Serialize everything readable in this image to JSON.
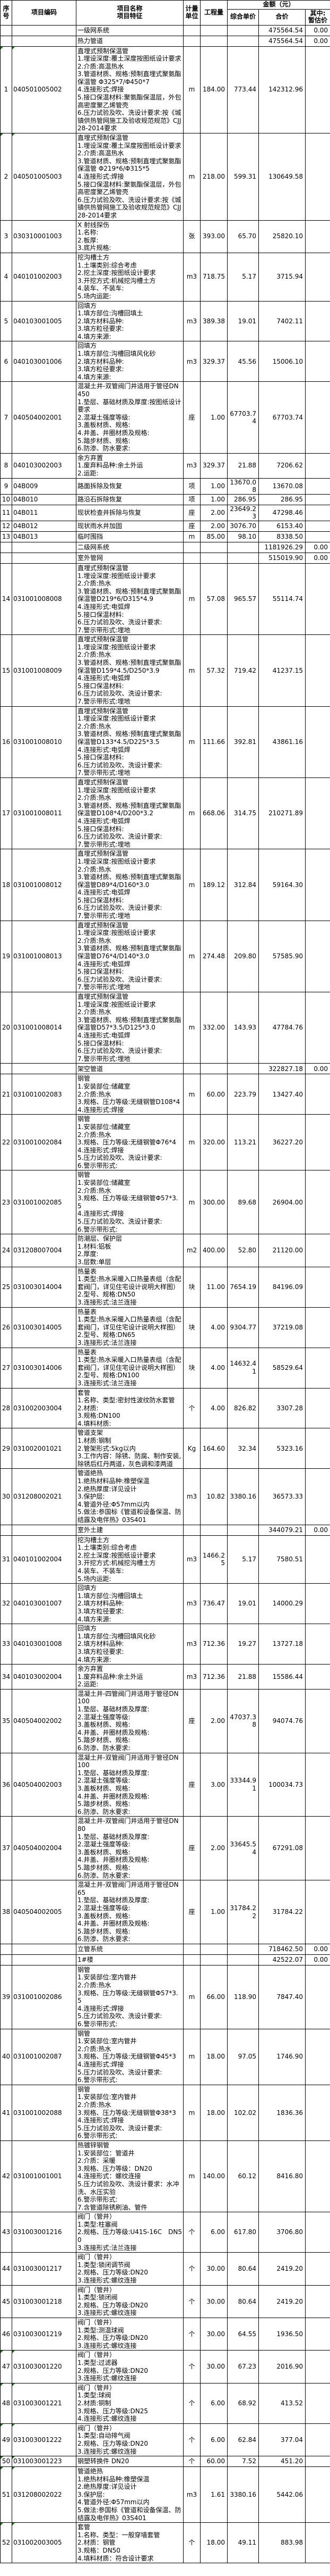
{
  "header": {
    "sn": "序号",
    "code": "项目编码",
    "name1": "项目名称",
    "name2": "项目特征",
    "unit": "计量单位",
    "qty": "工程量",
    "amount_group": "金额（元）",
    "unit_price": "综合单价",
    "total": "合价",
    "estimate1": "其中:",
    "estimate2": "暂估价"
  },
  "rows": [
    {
      "section": true,
      "name": "一级网系统",
      "total": "475564.54",
      "est": "0.00"
    },
    {
      "section": true,
      "name": "热力管道",
      "total": "475564.54",
      "est": "0.00"
    },
    {
      "no": "1",
      "code": "040501005002",
      "green": true,
      "name": "直埋式预制保温管",
      "features": [
        "1.埋设深度:覆土深度按图纸设计要求",
        "2.介质:高温热水",
        "3.管道材质、规格:预制直埋式聚氨酯保温管 Φ325*7/Φ450*7",
        "4.连接形式:焊接",
        "5.接口保温材料:聚氨酯保温层，外包高密度聚乙烯管壳",
        "6.压力试验及吹、洗设计要求:按《城镇供热管网施工及验收规范规范》CJJ28-2014要求"
      ],
      "unit": "m",
      "qty": "184.00",
      "price": "773.44",
      "total": "142312.96",
      "est": ""
    },
    {
      "no": "2",
      "code": "040501005003",
      "green": true,
      "name": "直埋式预制保温管",
      "features": [
        "1.埋设深度:覆土深度按图纸设计要求",
        "2.介质:高温热水",
        "3.管道材质、规格:预制直埋式聚氨酯保温管 Φ219*6/Φ315*5",
        "4.连接形式:焊接",
        "5.接口保温材料:聚氨酯保温层，外包高密度聚乙烯管壳",
        "6.压力试验及吹、洗设计要求:按《城镇供热管网施工及验收规范规范》CJJ28-2014要求"
      ],
      "unit": "m",
      "qty": "218.00",
      "price": "599.31",
      "total": "130649.58",
      "est": ""
    },
    {
      "no": "3",
      "code": "030310001003",
      "name": "X 射线探伤",
      "features": [
        "1.名称:",
        "2.板厚:",
        "3.底片规格:"
      ],
      "unit": "张",
      "qty": "393.00",
      "price": "65.70",
      "total": "25820.10",
      "est": ""
    },
    {
      "no": "4",
      "code": "040101002003",
      "name": "挖沟槽土方",
      "features": [
        "1.土壤类别:综合考虑",
        "2.挖土深度:按图纸设计要求",
        "3.开挖方式:机械挖沟槽土方",
        "4.装车、不装车:",
        "5.场内运距:"
      ],
      "unit": "m3",
      "qty": "718.75",
      "price": "5.17",
      "total": "3715.94",
      "est": ""
    },
    {
      "no": "5",
      "code": "040103001005",
      "name": "回填方",
      "features": [
        "1.填方部位:沟槽回填土",
        "2.填方材料品种:",
        "3.填方粒径要求:",
        "4.填方来源:"
      ],
      "unit": "m3",
      "qty": "389.38",
      "price": "19.01",
      "total": "7402.11",
      "est": ""
    },
    {
      "no": "6",
      "code": "040103001006",
      "name": "回填方",
      "features": [
        "1.填方部位:沟槽回填风化砂",
        "2.填方材料品种:",
        "3.填方粒径要求:",
        "4.填方来源:"
      ],
      "unit": "m3",
      "qty": "329.37",
      "price": "45.56",
      "total": "15006.10",
      "est": ""
    },
    {
      "no": "7",
      "code": "040504002001",
      "name": "混凝土井-双管阀门井适用于管径DN450",
      "features": [
        "1.垫层、基础材质及厚度:按图纸设计要求",
        "2.混凝土强度等级:",
        "3.盖板材质、规格:",
        "4.井盖、井圈材质及规格:",
        "5.踏步材质、规格:",
        "6.防渗、防水要求:"
      ],
      "unit": "座",
      "qty": "1.00",
      "price": "67703.74",
      "total": "67703.74",
      "est": ""
    },
    {
      "no": "8",
      "code": "040103002003",
      "name": "余方弃置",
      "features": [
        "1.废弃料品种:余土外运",
        "2.运距:"
      ],
      "unit": "m3",
      "qty": "329.37",
      "price": "21.88",
      "total": "7206.62",
      "est": ""
    },
    {
      "no": "9",
      "code": "04B009",
      "single": true,
      "name": "路面拆除及恢复",
      "features": [],
      "unit": "项",
      "qty": "1.00",
      "price": "13670.08",
      "total": "13670.08",
      "est": ""
    },
    {
      "no": "10",
      "code": "04B010",
      "single": true,
      "name": "路沿石拆除恢复",
      "features": [],
      "unit": "项",
      "qty": "1.00",
      "price": "286.95",
      "total": "286.95",
      "est": ""
    },
    {
      "no": "11",
      "code": "04B011",
      "single": true,
      "name": "现状检查井拆除与恢复",
      "features": [],
      "unit": "座",
      "qty": "2.00",
      "price": "23649.23",
      "total": "47298.46",
      "est": ""
    },
    {
      "no": "12",
      "code": "04B012",
      "single": true,
      "name": "现状雨水井加固",
      "features": [],
      "unit": "座",
      "qty": "2.00",
      "price": "3076.70",
      "total": "6153.40",
      "est": ""
    },
    {
      "no": "13",
      "code": "04B013",
      "single": true,
      "name": "临时围挡",
      "features": [],
      "unit": "m",
      "qty": "85.00",
      "price": "98.10",
      "total": "8338.50",
      "est": ""
    },
    {
      "section": true,
      "name": "二级网系统",
      "total": "1181926.29",
      "est": "0.00"
    },
    {
      "section": true,
      "name": "室外管网",
      "total": "515019.90",
      "est": "0.00"
    },
    {
      "no": "14",
      "code": "031001008008",
      "name": "直埋式预制保温管",
      "features": [
        "1.埋设深度:按图纸设计要求",
        "2.介质:热水",
        "3.管道材质、规格:预制直埋式聚氨酯保温管D219*6/D315*4.9",
        "4.连接形式:电弧焊",
        "5.接口保温材料:",
        "6.压力试验及吹、洗设计要求:",
        "7.警示带形式:埋地"
      ],
      "unit": "m",
      "qty": "57.08",
      "price": "965.57",
      "total": "55114.74",
      "est": ""
    },
    {
      "no": "15",
      "code": "031001008009",
      "name": "直埋式预制保温管",
      "features": [
        "1.埋设深度:按图纸设计要求",
        "2.介质:热水",
        "3.管道材质、规格:预制直埋式聚氨酯保温管D159*4.5/D250*3.9",
        "4.连接形式:电弧焊",
        "5.接口保温材料:",
        "6.压力试验及吹、洗设计要求:",
        "7.警示带形式:埋地"
      ],
      "unit": "m",
      "qty": "57.32",
      "price": "719.42",
      "total": "41237.15",
      "est": ""
    },
    {
      "no": "16",
      "code": "031001008010",
      "name": "直埋式预制保温管",
      "features": [
        "1.埋设深度:按图纸设计要求",
        "2.介质:热水",
        "3.管道材质、规格:预制直埋式聚氨酯保温管D133*4.5/D225*3.5",
        "4.连接形式:电弧焊",
        "5.接口保温材料:",
        "6.压力试验及吹、洗设计要求:",
        "7.警示带形式:埋地"
      ],
      "unit": "m",
      "qty": "111.66",
      "price": "392.81",
      "total": "43861.16",
      "est": ""
    },
    {
      "no": "17",
      "code": "031001008011",
      "name": "直埋式预制保温管",
      "features": [
        "1.埋设深度:按图纸设计要求",
        "2.介质:热水",
        "3.管道材质、规格:预制直埋式聚氨酯保温管D108*4/D200*3.2",
        "4.连接形式:电弧焊",
        "5.接口保温材料:",
        "6.压力试验及吹、洗设计要求:",
        "7.警示带形式:埋地"
      ],
      "unit": "m",
      "qty": "668.06",
      "price": "314.75",
      "total": "210271.89",
      "est": ""
    },
    {
      "no": "18",
      "code": "031001008012",
      "name": "直埋式预制保温管",
      "features": [
        "1.埋设深度:按图纸设计要求",
        "2.介质:热水",
        "3.管道材质、规格:预制直埋式聚氨酯保温管D89*4/D160*3.0",
        "4.连接形式:电弧焊",
        "5.接口保温材料:",
        "6.压力试验及吹、洗设计要求:",
        "7.警示带形式:埋地"
      ],
      "unit": "m",
      "qty": "189.12",
      "price": "312.84",
      "total": "59164.30",
      "est": ""
    },
    {
      "no": "19",
      "code": "031001008013",
      "name": "直埋式预制保温管",
      "features": [
        "1.埋设深度:按图纸设计要求",
        "2.介质:热水",
        "3.管道材质、规格:预制直埋式聚氨酯保温管D76*4/D140*3.0",
        "4.连接形式:电弧焊",
        "5.接口保温材料:",
        "6.压力试验及吹、洗设计要求:",
        "7.警示带形式:埋地"
      ],
      "unit": "m",
      "qty": "274.48",
      "price": "209.80",
      "total": "57585.90",
      "est": ""
    },
    {
      "no": "20",
      "code": "031001008014",
      "name": "直埋式预制保温管",
      "features": [
        "1.埋设深度:按图纸设计要求",
        "2.介质:热水",
        "3.管道材质、规格:预制直埋式聚氨酯保温管D57*3.5/D125*3.0",
        "4.连接形式:电弧焊",
        "5.接口保温材料:",
        "6.压力试验及吹、洗设计要求:",
        "7.警示带形式:埋地"
      ],
      "unit": "m",
      "qty": "332.00",
      "price": "143.93",
      "total": "47784.76",
      "est": ""
    },
    {
      "section": true,
      "name": "架空管道",
      "total": "322827.18",
      "est": "0.00"
    },
    {
      "no": "21",
      "code": "031001002083",
      "name": "钢管",
      "features": [
        "1.安装部位:储藏室",
        "2.介质:热水",
        "3.规格、压力等级:无缝钢管D108*4",
        "4.连接形式:焊接"
      ],
      "unit": "m",
      "qty": "60.00",
      "price": "223.79",
      "total": "13427.40",
      "est": ""
    },
    {
      "no": "22",
      "code": "031001002084",
      "name": "钢管",
      "features": [
        "1.安装部位:储藏室",
        "2.介质:热水",
        "3.规格、压力等级:无缝钢管Φ76*4",
        "4.连接形式:焊接",
        "5.压力试验及吹、洗设计要求:",
        "6.警示带形式:"
      ],
      "unit": "m",
      "qty": "320.00",
      "price": "113.21",
      "total": "36227.20",
      "est": ""
    },
    {
      "no": "23",
      "code": "031001002085",
      "name": "钢管",
      "features": [
        "1.安装部位:储藏室",
        "2.介质:热水",
        "3.规格、压力等级:无缝钢管Φ57*3.5",
        "4.连接形式:焊接",
        "5.压力试验及吹、洗设计要求:",
        "6.警示带形式:"
      ],
      "unit": "m",
      "qty": "300.00",
      "price": "89.68",
      "total": "26904.00",
      "est": ""
    },
    {
      "no": "24",
      "code": "031208007004",
      "name": "防潮层、保护层",
      "features": [
        "1.材料:铝板",
        "2.厚度:",
        "3.层数:单层"
      ],
      "unit": "m2",
      "qty": "400.00",
      "price": "52.80",
      "total": "21120.00",
      "est": ""
    },
    {
      "no": "25",
      "code": "031003014004",
      "name": "热量表",
      "features": [
        "1.类型:热水采暖入口热量表组（含配套阀门，详见住宅设计说明大样图）",
        "2.型号、规格:DN50",
        "3.连接形式:法兰连接"
      ],
      "unit": "块",
      "qty": "11.00",
      "price": "7654.19",
      "total": "84196.09",
      "est": ""
    },
    {
      "no": "26",
      "code": "031003014005",
      "name": "热量表",
      "features": [
        "1.类型:热水采暖入口热量表组（含配套阀门，详见住宅设计说明大样图）",
        "2.型号、规格:DN65",
        "3.连接形式:法兰连接"
      ],
      "unit": "块",
      "qty": "4.00",
      "price": "9304.77",
      "total": "37219.08",
      "est": ""
    },
    {
      "no": "27",
      "code": "031003014006",
      "name": "热量表",
      "features": [
        "1.类型:热水采暖入口热量表组（含配套阀门，详见住宅设计说明大样图）",
        "2.型号、规格:DN100",
        "3.连接形式:法兰连接"
      ],
      "unit": "块",
      "qty": "4.00",
      "price": "14632.41",
      "total": "58529.64",
      "est": ""
    },
    {
      "no": "28",
      "code": "031002003004",
      "name": "套管",
      "features": [
        "1.名称、类型:密封性波纹防水套管",
        "2.材质:",
        "3.规格:DN100",
        "4.填料材质:"
      ],
      "unit": "个",
      "qty": "4.00",
      "price": "826.82",
      "total": "3307.28",
      "est": ""
    },
    {
      "no": "29",
      "code": "031002001021",
      "name": "管道支架",
      "features": [
        "1.材质:钢制",
        "2.管架形式:5kg以内",
        "3.工作内容：除锈、防腐、制作安装,除锈后红丹两道，灰色调和漆两道"
      ],
      "unit": "Kg",
      "qty": "164.60",
      "price": "32.34",
      "total": "5323.16",
      "est": ""
    },
    {
      "no": "30",
      "code": "031208002021",
      "name": "管道绝热",
      "features": [
        "1.绝热材料品种:橡塑保温",
        "2.绝热厚度:详见设计",
        "3.保护层:",
        "4.管道外径:Φ57mm以内",
        "5.做法:参国标《管道和设备保温、防结露及电伴热》03S401"
      ],
      "unit": "m3",
      "qty": "10.82",
      "price": "3380.16",
      "total": "36573.33",
      "est": ""
    },
    {
      "section": true,
      "name": "室外土建",
      "total": "344079.21",
      "est": "0.00"
    },
    {
      "no": "31",
      "code": "040101002004",
      "name": "挖沟槽土方",
      "features": [
        "1.土壤类别:综合考虑",
        "2.挖土深度:按图纸设计要求",
        "3.开挖方式:机械挖沟槽土方",
        "4.装车、不装车:",
        "5.场内运距:"
      ],
      "unit": "m3",
      "qty": "1466.25",
      "price": "5.17",
      "total": "7580.51",
      "est": ""
    },
    {
      "no": "32",
      "code": "040103001007",
      "name": "回填方",
      "features": [
        "1.填方部位:沟槽回填土",
        "2.填方材料品种:",
        "3.填方粒径要求:",
        "4.填方来源:"
      ],
      "unit": "m3",
      "qty": "736.47",
      "price": "19.01",
      "total": "14000.29",
      "est": ""
    },
    {
      "no": "33",
      "code": "040103001008",
      "name": "回填方",
      "features": [
        "1.填方部位:沟槽回填风化砂",
        "2.填方材料品种:",
        "3.填方粒径要求:",
        "4.填方来源:"
      ],
      "unit": "m3",
      "qty": "712.36",
      "price": "19.27",
      "total": "13727.18",
      "est": ""
    },
    {
      "no": "34",
      "code": "040103002004",
      "name": "余方弃置",
      "features": [
        "1.废弃料品种:余土外运",
        "2.运距:"
      ],
      "unit": "m3",
      "qty": "712.36",
      "price": "21.88",
      "total": "15586.44",
      "est": ""
    },
    {
      "no": "35",
      "code": "040504002002",
      "name": "混凝土井-四管阀门井适用于管径DN100",
      "features": [
        "1.垫层、基础材质及厚度:",
        "2.混凝土强度等级:",
        "3.盖板材质、规格:",
        "4.井盖、井圈材质及规格:",
        "5.踏步材质、规格:",
        "6.防渗、防水要求:"
      ],
      "unit": "座",
      "qty": "2.00",
      "price": "47037.38",
      "total": "94074.76",
      "est": ""
    },
    {
      "no": "36",
      "code": "040504002003",
      "name": "混凝土井-双管阀门井适用于管径DN100",
      "features": [
        "1.垫层、基础材质及厚度:",
        "2.混凝土强度等级:",
        "3.盖板材质、规格:",
        "4.井盖、井圈材质及规格:",
        "5.踏步材质、规格:",
        "6.防渗、防水要求:"
      ],
      "unit": "座",
      "qty": "3.00",
      "price": "33344.91",
      "total": "100034.73",
      "est": ""
    },
    {
      "no": "37",
      "code": "040504002004",
      "name": "混凝土井-双管阀门井适用于管径DN80",
      "features": [
        "1.垫层、基础材质及厚度:",
        "2.混凝土强度等级:",
        "3.盖板材质、规格:",
        "4.井盖、井圈材质及规格:",
        "5.踏步材质、规格:",
        "6.防渗、防水要求:"
      ],
      "unit": "座",
      "qty": "2.00",
      "price": "33645.54",
      "total": "67291.08",
      "est": ""
    },
    {
      "no": "38",
      "code": "040504002005",
      "name": "混凝土井-双管阀门井适用于管径DN65",
      "features": [
        "1.垫层、基础材质及厚度:",
        "2.混凝土强度等级:",
        "3.盖板材质、规格:",
        "4.井盖、井圈材质及规格:",
        "5.踏步材质、规格:",
        "6.防渗、防水要求:"
      ],
      "unit": "座",
      "qty": "1.00",
      "price": "31784.22",
      "total": "31784.22",
      "est": ""
    },
    {
      "section": true,
      "name": "立管系统",
      "total": "718462.50",
      "est": "0.00"
    },
    {
      "section": true,
      "name": "1#楼",
      "total": "42522.07",
      "est": "0.00"
    },
    {
      "no": "39",
      "code": "031001002086",
      "name": "钢管",
      "features": [
        "1.安装部位:室内管井",
        "2.介质:热水",
        "3.规格、压力等级:无缝钢管Φ57*3.5",
        "4.连接形式:焊接",
        "5.压力试验及吹、洗设计要求:",
        "6.警示带形式:"
      ],
      "unit": "m",
      "qty": "66.00",
      "price": "118.90",
      "total": "7847.40",
      "est": ""
    },
    {
      "no": "40",
      "code": "031001002087",
      "name": "钢管",
      "features": [
        "1.安装部位:室内管井",
        "2.介质:热水",
        "3.规格、压力等级:无缝钢管Φ45*3",
        "4.连接形式:焊接",
        "5.压力试验及吹、洗设计要求:",
        "6.警示带形式:"
      ],
      "unit": "m",
      "qty": "18.00",
      "price": "97.05",
      "total": "1746.90",
      "est": ""
    },
    {
      "no": "41",
      "code": "031001002088",
      "name": "钢管",
      "features": [
        "1.安装部位:室内管井",
        "2.介质:热水",
        "3.规格、压力等级:无缝钢管Φ38*3",
        "4.连接形式:焊接",
        "5.压力试验及吹、洗设计要求:",
        "6.警示带形式:"
      ],
      "unit": "m",
      "qty": "18.00",
      "price": "102.02",
      "total": "1836.36",
      "est": ""
    },
    {
      "no": "42",
      "code": "031001001001",
      "name": "热镀锌钢管",
      "features": [
        "1.安装部位：管道井",
        "2.介质：采暖",
        "3.规格、压力等级：DN20",
        "4.连接形式：螺纹连接",
        "5.压力试验及吹、洗设计要求：水冲洗、水压实验",
        "6.警示带形式:",
        "7.含管道除锈刷油、管件"
      ],
      "unit": "m",
      "qty": "140.00",
      "price": "60.12",
      "total": "8416.80",
      "est": ""
    },
    {
      "no": "43",
      "code": "031003001216",
      "name": "阀门（管井）",
      "features": [
        "1.类型:柱塞阀",
        "2.规格、压力等级:U41S-16C　DN50",
        "3.连接形式:法兰连接"
      ],
      "unit": "个",
      "qty": "6.00",
      "price": "617.80",
      "total": "3706.80",
      "est": ""
    },
    {
      "no": "44",
      "code": "031003001217",
      "name": "阀门（管井）",
      "features": [
        "1.类型:锁闭调节阀",
        "2.规格、压力等级:DN20",
        "3.连接形式:螺纹连接"
      ],
      "unit": "个",
      "qty": "30.00",
      "price": "80.64",
      "total": "2419.20",
      "est": ""
    },
    {
      "no": "45",
      "code": "031003001218",
      "name": "阀门（管井）",
      "features": [
        "1.类型:锁闭阀",
        "2.规格、压力等级:DN20",
        "3.连接形式:螺纹连接"
      ],
      "unit": "个",
      "qty": "30.00",
      "price": "80.64",
      "total": "2419.20",
      "est": ""
    },
    {
      "no": "46",
      "code": "031003001219",
      "name": "阀门（管井）",
      "features": [
        "1.类型:测温球阀",
        "2.规格、压力等级:DN20",
        "3.连接形式:螺纹连接"
      ],
      "unit": "个",
      "qty": "30.00",
      "price": "64.55",
      "total": "1936.50",
      "est": ""
    },
    {
      "no": "47",
      "code": "031003001220",
      "green": true,
      "name": "阀门（管井）",
      "features": [
        "1.类型:过滤器",
        "2.规格、压力等级:DN20",
        "3.连接形式:螺纹连接"
      ],
      "unit": "个",
      "qty": "30.00",
      "price": "67.23",
      "total": "2016.90",
      "est": ""
    },
    {
      "no": "48",
      "code": "031003001221",
      "green": true,
      "name": "阀门（管井）",
      "features": [
        "1.类型:球阀",
        "2.材质:铜制",
        "3.规格、压力等级:DN25",
        "4.连接形式:螺纹连接"
      ],
      "unit": "个",
      "qty": "6.00",
      "price": "68.92",
      "total": "413.52",
      "est": ""
    },
    {
      "no": "49",
      "code": "031003001222",
      "green": true,
      "name": "阀门（管井）",
      "features": [
        "1.类型:自动排气阀",
        "2.规格、压力等级:DN20",
        "3.连接形式:螺纹连接"
      ],
      "unit": "个",
      "qty": "6.00",
      "price": "62.84",
      "total": "377.04",
      "est": ""
    },
    {
      "no": "50",
      "code": "031003001223",
      "green": true,
      "single": true,
      "name": "钢塑转换件 DN20",
      "features": [],
      "unit": "个",
      "qty": "60.00",
      "price": "7.52",
      "total": "451.20",
      "est": ""
    },
    {
      "no": "51",
      "code": "031208002022",
      "green": true,
      "name": "管道绝热",
      "features": [
        "1.绝热材料品种:橡塑保温",
        "2.绝热厚度:详见设计",
        "3.保护层:",
        "4.管道外径:Φ57mm以内",
        "5.做法:参国标《管道和设备保温、防结露及电伴热》03S401"
      ],
      "unit": "m3",
      "qty": "1.61",
      "price": "3380.16",
      "total": "5442.06",
      "est": ""
    },
    {
      "no": "52",
      "code": "031002003005",
      "green": true,
      "name": "套管",
      "features": [
        "1.名称、类型：一般穿墙套管",
        "2.材质：钢管",
        "3.规格：DN50",
        "4.填料材质：符合设计要求"
      ],
      "unit": "个",
      "qty": "18.00",
      "price": "49.11",
      "total": "883.98",
      "est": ""
    }
  ]
}
